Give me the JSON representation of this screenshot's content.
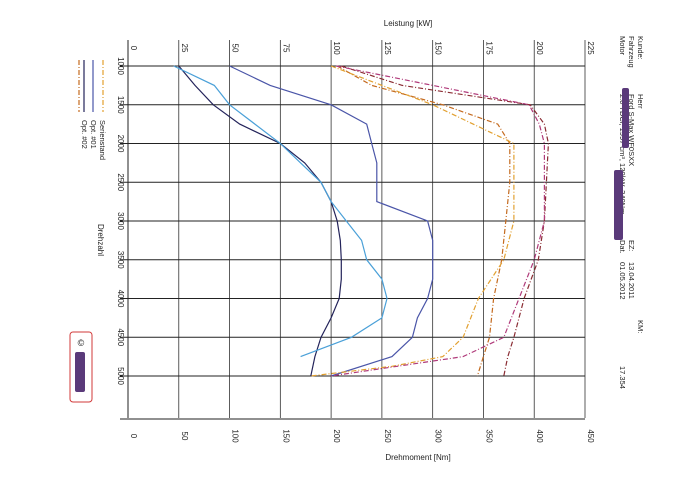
{
  "chart_data": {
    "type": "line",
    "orientation": "rotated-90",
    "top_axis": {
      "label": "Leistung [kW]",
      "range": [
        0,
        225
      ],
      "ticks": [
        0,
        25,
        50,
        75,
        100,
        125,
        150,
        175,
        200,
        225
      ]
    },
    "bottom_axis": {
      "label": "Drehmoment [Nm]",
      "range": [
        0,
        450
      ],
      "ticks": [
        0,
        50,
        100,
        150,
        200,
        250,
        300,
        350,
        400,
        450
      ]
    },
    "rpm_axis": {
      "label": "Drehzahl",
      "range": [
        1000,
        5000
      ],
      "ticks": [
        1000,
        1500,
        2000,
        2500,
        3000,
        3500,
        4000,
        4500,
        5000
      ]
    },
    "grid": true,
    "legend_position": "left",
    "series": [
      {
        "name": "Serienstand",
        "quantity": "power",
        "color": "#23235a",
        "dash": "solid",
        "rpm": [
          1000,
          1250,
          1500,
          1750,
          2000,
          2250,
          2500,
          2750,
          3000,
          3250,
          3500,
          3750,
          4000,
          4250,
          4500,
          4750,
          5000
        ],
        "value": [
          25,
          33,
          42,
          55,
          75,
          87,
          95,
          100,
          103,
          104.5,
          105,
          105,
          104,
          100,
          95,
          92,
          90
        ]
      },
      {
        "name": "Serienstand",
        "quantity": "torque",
        "color": "#4a55a8",
        "dash": "solid",
        "rpm": [
          1000,
          1250,
          1500,
          1750,
          2000,
          2250,
          2500,
          2750,
          3000,
          3250,
          3500,
          3750,
          4000,
          4250,
          4500,
          4750,
          5000
        ],
        "value": [
          100,
          140,
          200,
          235,
          240,
          245,
          245,
          245,
          295,
          300,
          300,
          300,
          295,
          285,
          280,
          260,
          200
        ]
      },
      {
        "name": "Opt. #01",
        "quantity": "power",
        "color": "#c46a1e",
        "dash": "dashdot",
        "rpm": [
          1000,
          1250,
          1500,
          1750,
          2000,
          2500,
          3000,
          3500,
          4000,
          4500,
          4750,
          5000
        ],
        "value": [
          103,
          120,
          155,
          182,
          188,
          188,
          186,
          184,
          180,
          178,
          175,
          172
        ]
      },
      {
        "name": "Opt. #01",
        "quantity": "torque",
        "color": "#e2a030",
        "dash": "dashdot",
        "rpm": [
          1000,
          1500,
          2000,
          2500,
          3000,
          3500,
          4000,
          4500,
          4750,
          4875,
          5000
        ],
        "value": [
          200,
          300,
          380,
          380,
          380,
          370,
          345,
          330,
          310,
          260,
          180
        ]
      },
      {
        "name": "Opt. #02",
        "quantity": "power",
        "color": "#8a2c33",
        "dash": "dashdot",
        "rpm": [
          1000,
          1250,
          1500,
          1750,
          2000,
          2500,
          3000,
          3500,
          4000,
          4500,
          4750,
          5000
        ],
        "value": [
          105,
          135,
          198,
          205,
          207,
          206,
          205,
          202,
          195,
          190,
          187,
          185
        ]
      },
      {
        "name": "Opt. #02",
        "quantity": "torque",
        "color": "#b03a7a",
        "dash": "dashdot",
        "rpm": [
          1000,
          1250,
          1500,
          1750,
          2000,
          2500,
          3000,
          3500,
          4000,
          4500,
          4750,
          5000
        ],
        "value": [
          205,
          300,
          395,
          405,
          410,
          410,
          410,
          400,
          385,
          370,
          330,
          200
        ]
      },
      {
        "name": "Opt. #02",
        "quantity": "torque-low",
        "color": "#4aa0d8",
        "dash": "solid",
        "rpm": [
          1000,
          1250,
          1500,
          1750,
          2000,
          2250,
          2500,
          2750,
          3000,
          3250,
          3500,
          3750,
          4000,
          4250,
          4500,
          4750
        ],
        "value": [
          45,
          85,
          100,
          125,
          150,
          170,
          190,
          200,
          215,
          230,
          235,
          250,
          255,
          250,
          220,
          170
        ]
      }
    ]
  },
  "info": {
    "labels": [
      "Kunde:",
      "Fahrzeug",
      "Motor"
    ],
    "kunde": "Herr",
    "fahrzeug": "Ford S-Max WF0SXX",
    "motor": "2.0 TDCi, 1997 cm³, 120kW, 340Nm",
    "ez_label": "EZ:",
    "ez_value": "13.04.2011",
    "dat_label": "Dat.",
    "dat_value": "01.05.2012",
    "km_label": "KM:",
    "km_value": "17.354"
  },
  "legend": {
    "items": [
      "Serienstand",
      "Opt. #01",
      "Opt. #02"
    ],
    "colors": [
      "#4a55a8",
      "#e2a030",
      "#b03a7a"
    ]
  },
  "stamp": {
    "text": "©"
  }
}
